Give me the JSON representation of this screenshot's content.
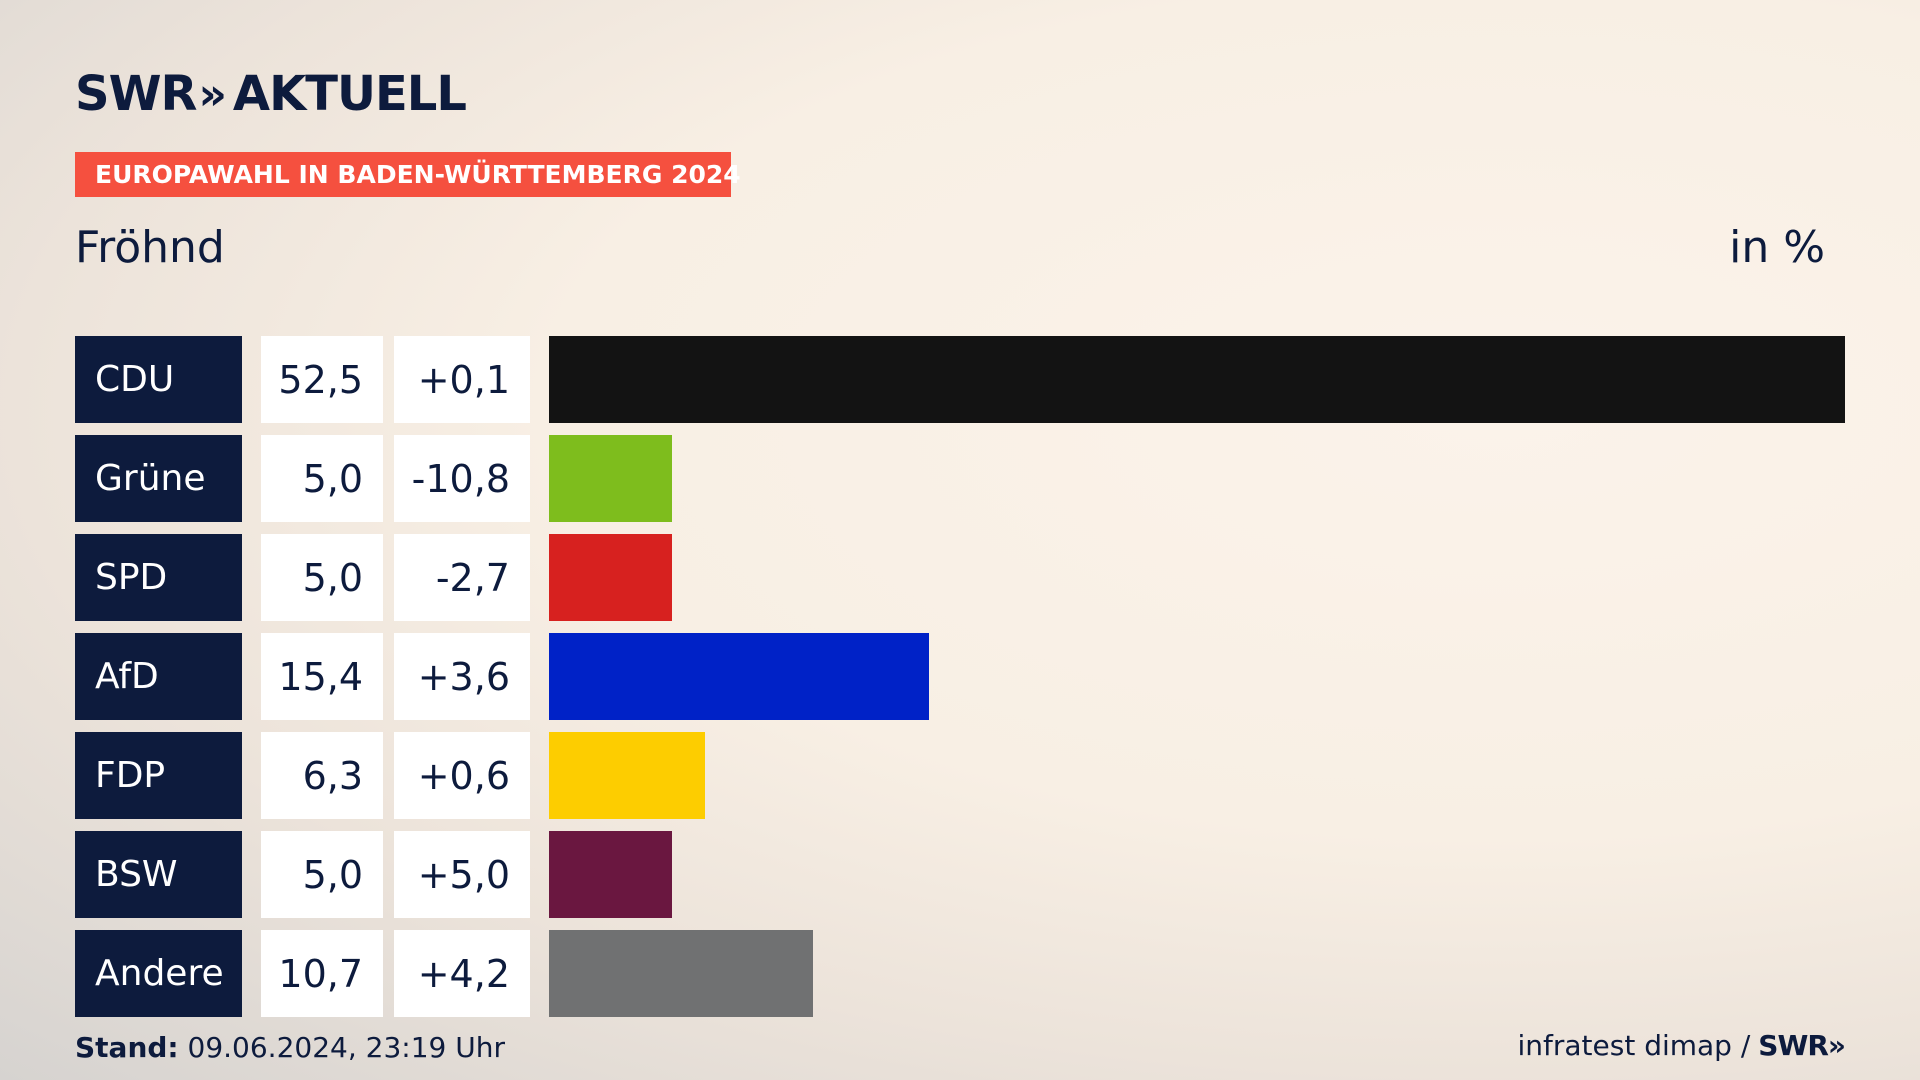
{
  "header": {
    "logo_brand": "SWR",
    "logo_chevrons": "»",
    "logo_text": "AKTUELL",
    "tag": "EUROPAWAHL IN BADEN-WÜRTTEMBERG 2024",
    "place": "Fröhnd",
    "unit": "in %"
  },
  "footer": {
    "stand_label": "Stand:",
    "stand_value": " 09.06.2024, 23:19 Uhr",
    "source": "infratest dimap /",
    "source_brand": "SWR»"
  },
  "chart_data": {
    "type": "bar",
    "orientation": "horizontal",
    "title": "Fröhnd",
    "unit": "in %",
    "categories": [
      "CDU",
      "Grüne",
      "SPD",
      "AfD",
      "FDP",
      "BSW",
      "Andere"
    ],
    "values": [
      52.5,
      5.0,
      5.0,
      15.4,
      6.3,
      5.0,
      10.7
    ],
    "value_labels": [
      "52,5",
      "5,0",
      "5,0",
      "15,4",
      "6,3",
      "5,0",
      "10,7"
    ],
    "diff_labels": [
      "+0,1",
      "-10,8",
      "-2,7",
      "+3,6",
      "+0,6",
      "+5,0",
      "+4,2"
    ],
    "diffs": [
      0.1,
      -10.8,
      -2.7,
      3.6,
      0.6,
      5.0,
      4.2
    ],
    "colors": [
      "#131313",
      "#7ebd1d",
      "#d7211f",
      "#0022c7",
      "#fdcd00",
      "#6a1740",
      "#707172"
    ],
    "xlim": [
      0,
      52.5
    ]
  }
}
